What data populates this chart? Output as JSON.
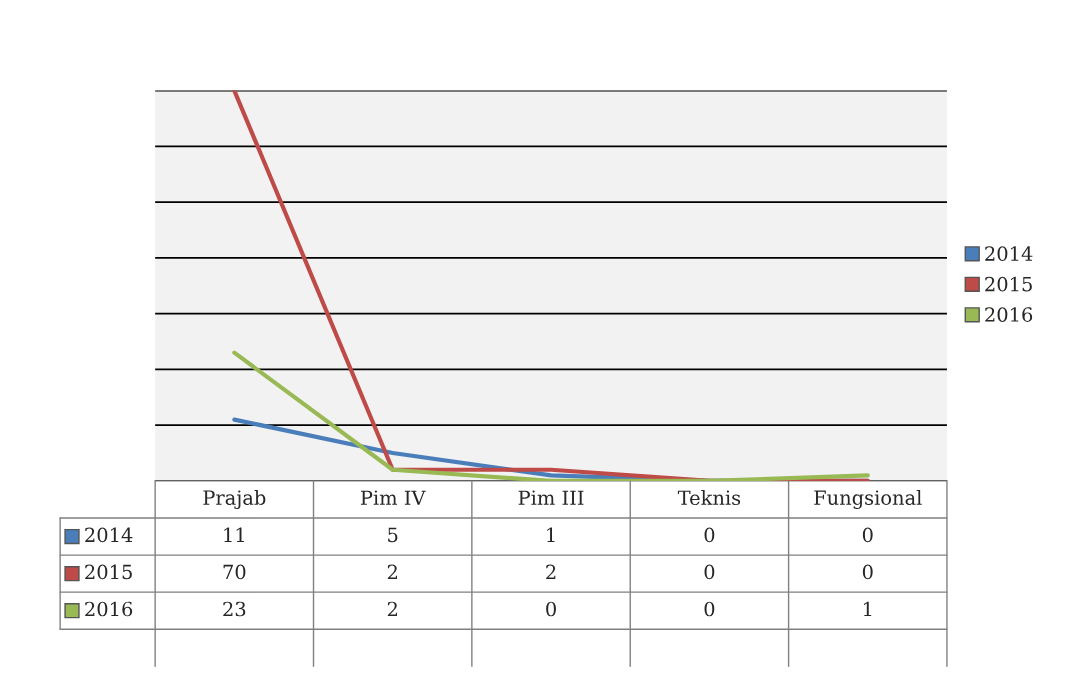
{
  "chart_data": {
    "type": "line",
    "categories": [
      "Prajab",
      "Pim IV",
      "Pim III",
      "Teknis",
      "Fungsional"
    ],
    "series": [
      {
        "name": "2014",
        "color": "#4a7ebb",
        "values": [
          11,
          5,
          1,
          0,
          0
        ]
      },
      {
        "name": "2015",
        "color": "#be4b48",
        "values": [
          70,
          2,
          2,
          0,
          0
        ]
      },
      {
        "name": "2016",
        "color": "#98b954",
        "values": [
          23,
          2,
          0,
          0,
          1
        ]
      }
    ],
    "ylim": [
      0,
      70
    ],
    "yticks": [
      {
        "value": 0,
        "label": null
      },
      {
        "value": 10,
        "label": null
      },
      {
        "value": 20,
        "label": null
      },
      {
        "value": 30,
        "label": null
      },
      {
        "value": 40,
        "label": null
      },
      {
        "value": 50,
        "label": null
      },
      {
        "value": 60,
        "label": null
      },
      {
        "value": 70,
        "label": null
      }
    ],
    "grid": "y",
    "legend": "right",
    "data_labels": true,
    "marker": "none",
    "line_style": "solid"
  }
}
